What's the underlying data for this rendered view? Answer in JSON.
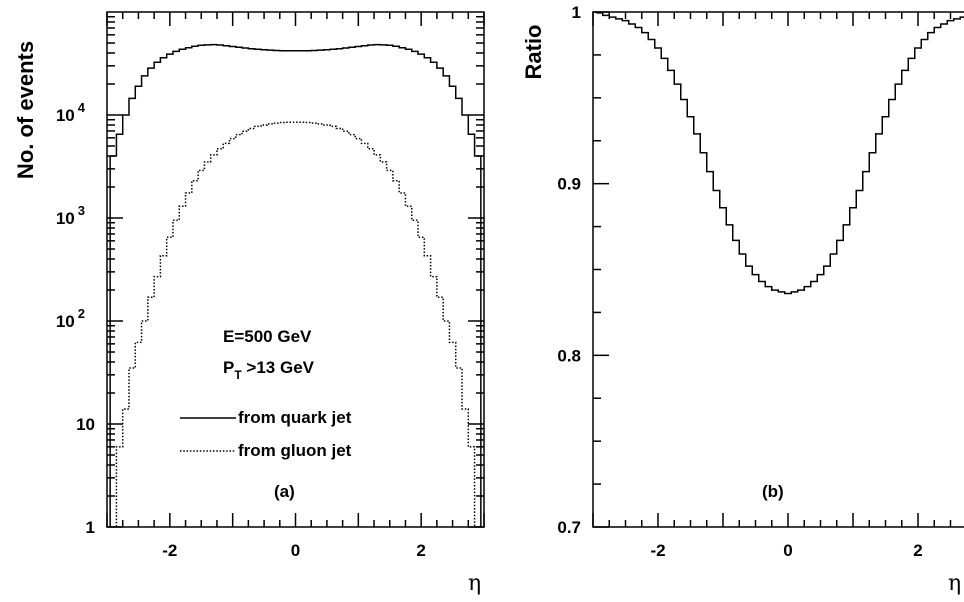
{
  "chart_data": [
    {
      "panel": "(a)",
      "type": "line",
      "xlabel": "η",
      "ylabel": "No. of events",
      "yscale": "log",
      "xlim": [
        -3,
        3
      ],
      "ylim": [
        1,
        100000
      ],
      "xticks": [
        "-2",
        "0",
        "2"
      ],
      "yticks": [
        {
          "value": 1,
          "base": "1",
          "exp": ""
        },
        {
          "value": 10,
          "base": "10",
          "exp": ""
        },
        {
          "value": 100,
          "base": "10",
          "exp": "2"
        },
        {
          "value": 1000,
          "base": "10",
          "exp": "3"
        },
        {
          "value": 10000,
          "base": "10",
          "exp": "4"
        }
      ],
      "annotations": {
        "energy": "E=500 GeV",
        "pt_main": "P",
        "pt_sub": "T",
        "pt_rest": " >13 GeV"
      },
      "x": [
        -2.9,
        -2.8,
        -2.7,
        -2.6,
        -2.5,
        -2.4,
        -2.3,
        -2.2,
        -2.1,
        -2.0,
        -1.9,
        -1.8,
        -1.7,
        -1.6,
        -1.5,
        -1.4,
        -1.3,
        -1.2,
        -1.1,
        -1.0,
        -0.9,
        -0.8,
        -0.7,
        -0.6,
        -0.5,
        -0.4,
        -0.3,
        -0.2,
        -0.1,
        0.0,
        0.1,
        0.2,
        0.3,
        0.4,
        0.5,
        0.6,
        0.7,
        0.8,
        0.9,
        1.0,
        1.1,
        1.2,
        1.3,
        1.4,
        1.5,
        1.6,
        1.7,
        1.8,
        1.9,
        2.0,
        2.1,
        2.2,
        2.3,
        2.4,
        2.5,
        2.6,
        2.7,
        2.8,
        2.9
      ],
      "series": [
        {
          "name": "from quark jet",
          "style": "solid",
          "values": [
            4000,
            6500,
            10000,
            14500,
            19000,
            24000,
            28500,
            32500,
            36000,
            39000,
            41500,
            43500,
            45000,
            46500,
            47500,
            48000,
            48200,
            47800,
            47000,
            46200,
            45500,
            44700,
            44000,
            43500,
            43000,
            42600,
            42300,
            42100,
            42000,
            42000,
            42000,
            42100,
            42300,
            42600,
            43000,
            43500,
            44000,
            44700,
            45500,
            46200,
            47000,
            47800,
            48200,
            48000,
            47500,
            46500,
            45000,
            43500,
            41500,
            39000,
            36000,
            32500,
            28500,
            24000,
            19000,
            14500,
            10000,
            6500,
            4000
          ]
        },
        {
          "name": "from gluon jet",
          "style": "dotted",
          "values": [
            1,
            6,
            14,
            35,
            62,
            100,
            170,
            270,
            430,
            650,
            950,
            1300,
            1750,
            2300,
            2900,
            3500,
            4100,
            4700,
            5300,
            5900,
            6450,
            6950,
            7400,
            7750,
            8000,
            8200,
            8350,
            8450,
            8500,
            8500,
            8500,
            8450,
            8350,
            8200,
            8000,
            7750,
            7400,
            6950,
            6450,
            5900,
            5300,
            4700,
            4100,
            3500,
            2900,
            2300,
            1750,
            1300,
            950,
            650,
            430,
            270,
            170,
            100,
            62,
            35,
            14,
            6,
            1
          ]
        }
      ]
    },
    {
      "panel": "(b)",
      "type": "line",
      "xlabel": "η",
      "ylabel": "Ratio",
      "xlim": [
        -3,
        3
      ],
      "ylim": [
        0.7,
        1.0
      ],
      "xticks": [
        "-2",
        "0",
        "2"
      ],
      "yticks": [
        "0.7",
        "0.8",
        "0.9",
        "1"
      ],
      "x": [
        -2.9,
        -2.8,
        -2.7,
        -2.6,
        -2.5,
        -2.4,
        -2.3,
        -2.2,
        -2.1,
        -2.0,
        -1.9,
        -1.8,
        -1.7,
        -1.6,
        -1.5,
        -1.4,
        -1.3,
        -1.2,
        -1.1,
        -1.0,
        -0.9,
        -0.8,
        -0.7,
        -0.6,
        -0.5,
        -0.4,
        -0.3,
        -0.2,
        -0.1,
        0.0,
        0.1,
        0.2,
        0.3,
        0.4,
        0.5,
        0.6,
        0.7,
        0.8,
        0.9,
        1.0,
        1.1,
        1.2,
        1.3,
        1.4,
        1.5,
        1.6,
        1.7,
        1.8,
        1.9,
        2.0,
        2.1,
        2.2,
        2.3,
        2.4,
        2.5,
        2.6,
        2.7,
        2.8,
        2.9
      ],
      "series": [
        {
          "style": "solid",
          "values": [
            0.9995,
            0.998,
            0.997,
            0.996,
            0.995,
            0.993,
            0.991,
            0.988,
            0.984,
            0.979,
            0.973,
            0.966,
            0.958,
            0.949,
            0.939,
            0.929,
            0.918,
            0.907,
            0.896,
            0.886,
            0.876,
            0.867,
            0.859,
            0.852,
            0.847,
            0.843,
            0.84,
            0.838,
            0.837,
            0.836,
            0.837,
            0.838,
            0.84,
            0.843,
            0.847,
            0.852,
            0.859,
            0.867,
            0.876,
            0.886,
            0.896,
            0.907,
            0.918,
            0.929,
            0.939,
            0.949,
            0.958,
            0.966,
            0.973,
            0.979,
            0.984,
            0.988,
            0.991,
            0.993,
            0.995,
            0.996,
            0.997,
            0.998,
            0.9995
          ]
        }
      ]
    }
  ]
}
